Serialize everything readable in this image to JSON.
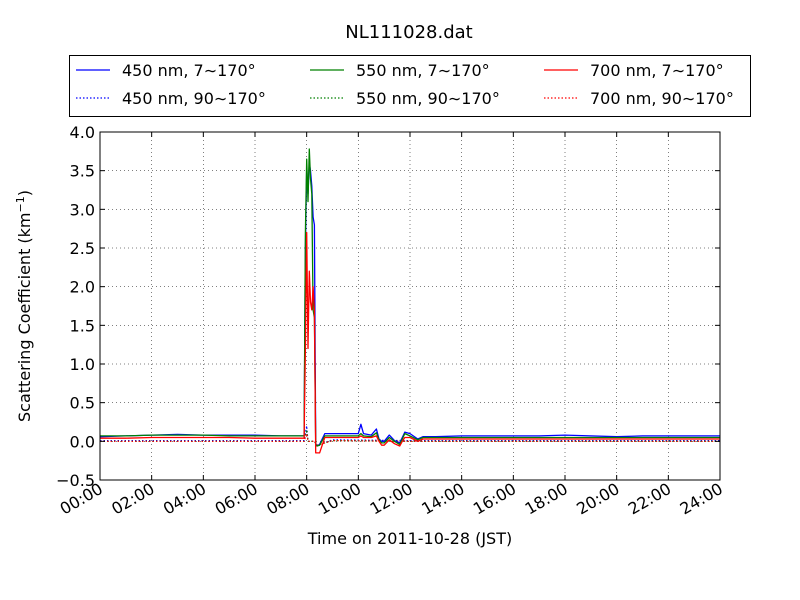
{
  "chart_data": {
    "type": "line",
    "title": "NL111028.dat",
    "xlabel": "Time on 2011-10-28 (JST)",
    "ylabel_main": "Scattering Coefficient (km",
    "ylabel_sup": "−1",
    "ylabel_close": ")",
    "x_unit": "hours",
    "xlim": [
      0,
      24
    ],
    "ylim": [
      -0.5,
      4.0
    ],
    "x_ticks": [
      0,
      2,
      4,
      6,
      8,
      10,
      12,
      14,
      16,
      18,
      20,
      22,
      24
    ],
    "x_tick_labels": [
      "00:00",
      "02:00",
      "04:00",
      "06:00",
      "08:00",
      "10:00",
      "12:00",
      "14:00",
      "16:00",
      "18:00",
      "20:00",
      "22:00",
      "24:00"
    ],
    "y_ticks": [
      -0.5,
      0.0,
      0.5,
      1.0,
      1.5,
      2.0,
      2.5,
      3.0,
      3.5,
      4.0
    ],
    "y_tick_labels": [
      "−0.5",
      "0.0",
      "0.5",
      "1.0",
      "1.5",
      "2.0",
      "2.5",
      "3.0",
      "3.5",
      "4.0"
    ],
    "grid": true,
    "legend_position": "top",
    "series": [
      {
        "name": "450 nm, 7∼170°",
        "color": "#0000ff",
        "style": "solid",
        "x": [
          0,
          1,
          2,
          3,
          4,
          5,
          6,
          7,
          7.9,
          7.95,
          8.0,
          8.05,
          8.1,
          8.15,
          8.2,
          8.25,
          8.3,
          8.35,
          8.4,
          8.5,
          8.7,
          9.0,
          9.5,
          10.0,
          10.1,
          10.2,
          10.5,
          10.7,
          10.8,
          10.9,
          11.0,
          11.2,
          11.4,
          11.6,
          11.7,
          11.8,
          12.0,
          12.3,
          12.5,
          13,
          14,
          15,
          16,
          17,
          18,
          19,
          20,
          21,
          22,
          23,
          24
        ],
        "y": [
          0.06,
          0.07,
          0.08,
          0.09,
          0.08,
          0.08,
          0.08,
          0.07,
          0.07,
          2.5,
          3.55,
          3.2,
          3.6,
          3.5,
          3.3,
          2.9,
          2.8,
          -0.03,
          -0.06,
          -0.04,
          0.1,
          0.1,
          0.1,
          0.1,
          0.22,
          0.1,
          0.08,
          0.16,
          0.03,
          0.0,
          0.0,
          0.08,
          0.01,
          -0.02,
          0.05,
          0.12,
          0.1,
          0.03,
          0.06,
          0.06,
          0.07,
          0.07,
          0.07,
          0.07,
          0.08,
          0.07,
          0.06,
          0.07,
          0.07,
          0.07,
          0.07
        ]
      },
      {
        "name": "550 nm, 7∼170°",
        "color": "#008000",
        "style": "solid",
        "x": [
          0,
          1,
          2,
          3,
          4,
          5,
          6,
          7,
          7.9,
          7.95,
          8.0,
          8.05,
          8.1,
          8.15,
          8.2,
          8.25,
          8.3,
          8.35,
          8.4,
          8.5,
          8.7,
          9.0,
          9.5,
          10.0,
          10.1,
          10.2,
          10.5,
          10.7,
          10.8,
          10.9,
          11.0,
          11.2,
          11.4,
          11.6,
          11.7,
          11.8,
          12.0,
          12.3,
          12.5,
          13,
          14,
          15,
          16,
          17,
          18,
          19,
          20,
          21,
          22,
          23,
          24
        ],
        "y": [
          0.07,
          0.07,
          0.08,
          0.08,
          0.08,
          0.07,
          0.07,
          0.07,
          0.07,
          2.7,
          3.65,
          3.1,
          3.78,
          3.4,
          3.2,
          1.7,
          1.6,
          -0.04,
          -0.06,
          -0.05,
          0.07,
          0.07,
          0.07,
          0.07,
          0.1,
          0.07,
          0.06,
          0.11,
          0.02,
          -0.02,
          -0.02,
          0.05,
          0.0,
          -0.04,
          0.03,
          0.1,
          0.07,
          0.02,
          0.05,
          0.05,
          0.05,
          0.05,
          0.05,
          0.05,
          0.05,
          0.05,
          0.05,
          0.05,
          0.05,
          0.05,
          0.05
        ]
      },
      {
        "name": "700 nm, 7∼170°",
        "color": "#ff0000",
        "style": "solid",
        "x": [
          0,
          1,
          2,
          3,
          4,
          5,
          6,
          7,
          7.9,
          7.95,
          8.0,
          8.05,
          8.1,
          8.15,
          8.2,
          8.25,
          8.3,
          8.35,
          8.4,
          8.5,
          8.7,
          9.0,
          9.5,
          10.0,
          10.1,
          10.2,
          10.5,
          10.7,
          10.8,
          10.9,
          11.0,
          11.2,
          11.4,
          11.6,
          11.7,
          11.8,
          12.0,
          12.3,
          12.5,
          13,
          14,
          15,
          16,
          17,
          18,
          19,
          20,
          21,
          22,
          23,
          24
        ],
        "y": [
          0.04,
          0.04,
          0.05,
          0.05,
          0.05,
          0.05,
          0.04,
          0.04,
          0.04,
          1.2,
          2.7,
          1.2,
          2.2,
          1.8,
          1.7,
          2.0,
          1.7,
          -0.15,
          -0.15,
          -0.15,
          0.05,
          0.05,
          0.05,
          0.05,
          0.07,
          0.05,
          0.05,
          0.07,
          0.0,
          -0.05,
          -0.05,
          0.02,
          -0.03,
          -0.06,
          0.0,
          0.05,
          0.05,
          0.0,
          0.03,
          0.03,
          0.03,
          0.03,
          0.03,
          0.03,
          0.03,
          0.03,
          0.03,
          0.03,
          0.03,
          0.03,
          0.03
        ]
      },
      {
        "name": "450 nm, 90∼170°",
        "color": "#0000ff",
        "style": "dotted",
        "x": [
          0,
          4,
          7.9,
          8.0,
          8.05,
          8.1,
          8.3,
          8.4,
          9.0,
          12,
          16,
          20,
          24
        ],
        "y": [
          0.01,
          0.01,
          0.01,
          0.2,
          0.0,
          0.0,
          0.0,
          -0.05,
          0.02,
          0.01,
          0.01,
          0.01,
          0.01
        ]
      },
      {
        "name": "550 nm, 90∼170°",
        "color": "#008000",
        "style": "dotted",
        "x": [
          0,
          4,
          7.9,
          8.0,
          8.05,
          8.1,
          8.3,
          8.4,
          9.0,
          12,
          16,
          20,
          24
        ],
        "y": [
          0.0,
          0.0,
          0.0,
          0.15,
          0.0,
          0.0,
          0.0,
          -0.05,
          0.01,
          0.0,
          0.0,
          0.0,
          0.0
        ]
      },
      {
        "name": "700 nm, 90∼170°",
        "color": "#ff0000",
        "style": "dotted",
        "x": [
          0,
          4,
          7.9,
          8.0,
          8.05,
          8.1,
          8.3,
          8.4,
          9.0,
          12,
          16,
          20,
          24
        ],
        "y": [
          0.0,
          0.0,
          0.0,
          0.1,
          0.0,
          0.0,
          0.0,
          -0.05,
          0.01,
          0.0,
          0.0,
          0.0,
          0.0
        ]
      }
    ]
  }
}
